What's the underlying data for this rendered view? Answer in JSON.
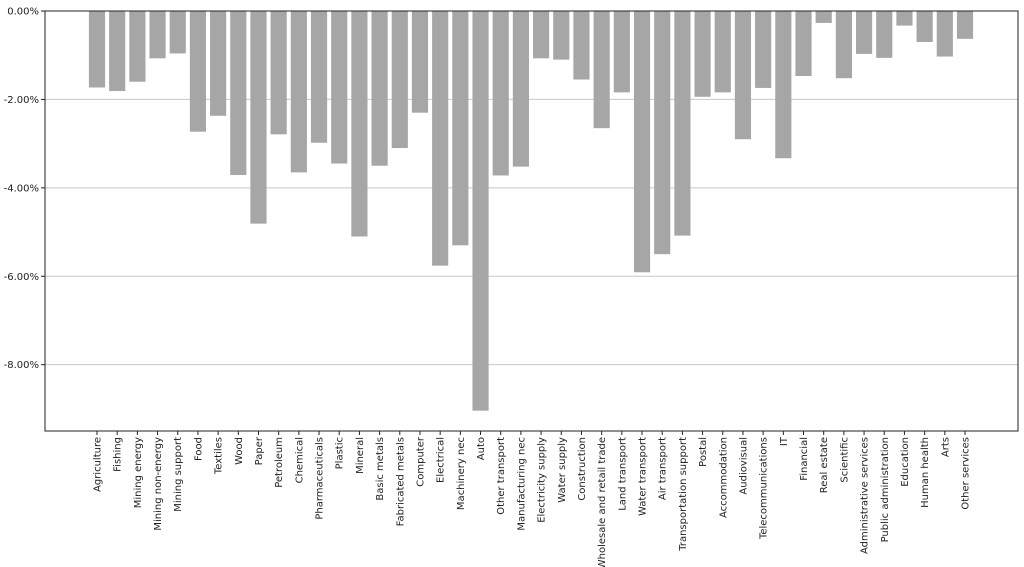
{
  "chart_data": {
    "type": "bar",
    "title": "",
    "xlabel": "",
    "ylabel": "",
    "ylim": [
      -9.5,
      0
    ],
    "yticks": [
      0,
      -2,
      -4,
      -6,
      -8
    ],
    "ytick_labels": [
      "0.00%",
      "-2.00%",
      "-4.00%",
      "-6.00%",
      "-8.00%"
    ],
    "grid": "horizontal",
    "legend": "none",
    "bar_color": "#a6a6a6",
    "grid_color": "#c8c8c8",
    "categories": [
      "Agriculture",
      "Fishing",
      "Mining energy",
      "Mining non-energy",
      "Mining support",
      "Food",
      "Textiles",
      "Wood",
      "Paper",
      "Petroleum",
      "Chemical",
      "Pharmaceuticals",
      "Plastic",
      "Mineral",
      "Basic metals",
      "Fabricated metals",
      "Computer",
      "Electrical",
      "Machinery nec",
      "Auto",
      "Other transport",
      "Manufacturing nec",
      "Electricity supply",
      "Water supply",
      "Construction",
      "Wholesale and retail trade",
      "Land transport",
      "Water transport",
      "Air transport",
      "Transportation support",
      "Postal",
      "Accommodation",
      "Audiovisual",
      "Telecommunications",
      "IT",
      "Financial",
      "Real estate",
      "Scientific",
      "Administrative services",
      "Public administration",
      "Education",
      "Human health",
      "Arts",
      "Other services"
    ],
    "values": [
      -1.73,
      -1.81,
      -1.6,
      -1.07,
      -0.96,
      -2.73,
      -2.37,
      -3.71,
      -4.81,
      -2.79,
      -3.65,
      -2.98,
      -3.45,
      -5.1,
      -3.5,
      -3.1,
      -2.3,
      -5.76,
      -5.3,
      -9.04,
      -3.72,
      -3.52,
      -1.07,
      -1.1,
      -1.55,
      -2.65,
      -1.84,
      -5.91,
      -5.5,
      -5.08,
      -1.94,
      -1.84,
      -2.9,
      -1.74,
      -3.33,
      -1.47,
      -0.27,
      -1.52,
      -0.97,
      -1.06,
      -0.33,
      -0.7,
      -1.03,
      -0.63
    ]
  }
}
